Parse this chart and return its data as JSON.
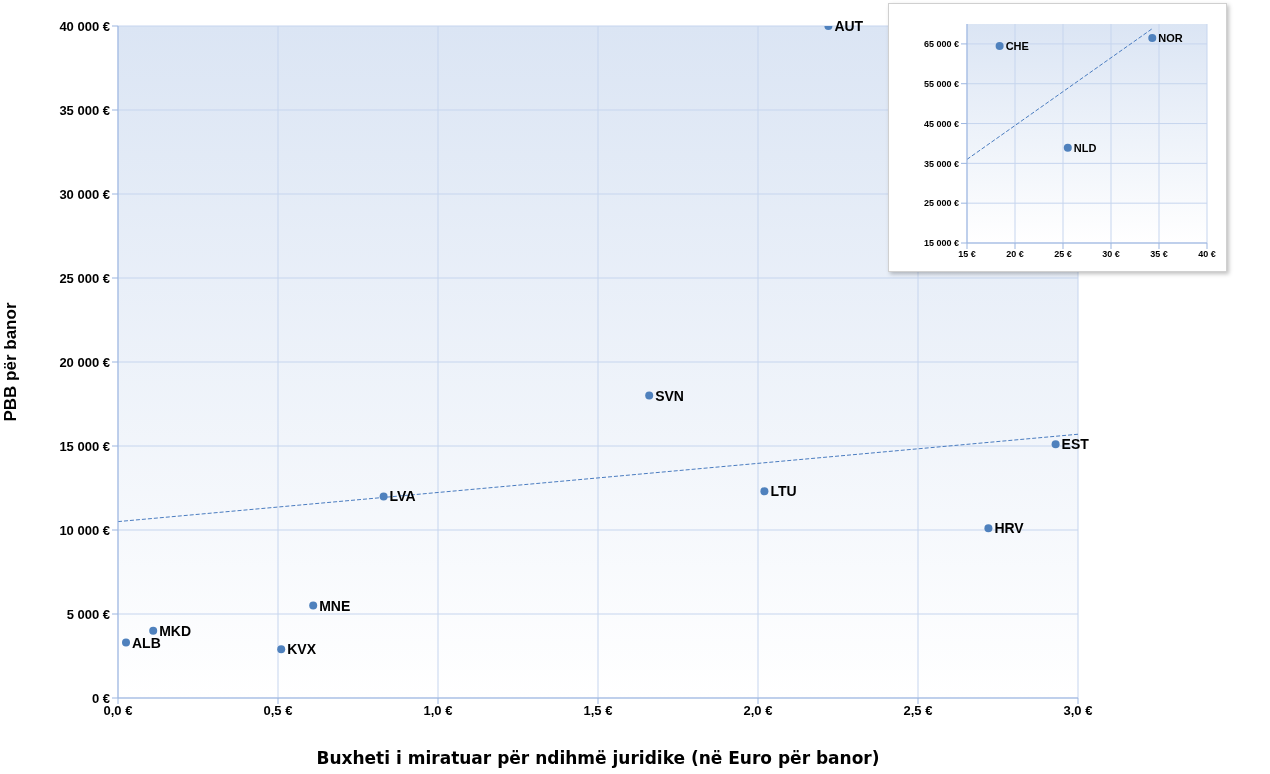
{
  "chart_data": [
    {
      "type": "scatter",
      "xlabel": "Buxheti i miratuar për ndihmë juridike (në Euro për banor)",
      "ylabel": "PBB për banor",
      "xlim": [
        0,
        3
      ],
      "ylim": [
        0,
        40000
      ],
      "xticks": [
        {
          "value": 0,
          "label": "0,0 €"
        },
        {
          "value": 0.5,
          "label": "0,5 €"
        },
        {
          "value": 1,
          "label": "1,0 €"
        },
        {
          "value": 1.5,
          "label": "1,5 €"
        },
        {
          "value": 2,
          "label": "2,0 €"
        },
        {
          "value": 2.5,
          "label": "2,5 €"
        },
        {
          "value": 3,
          "label": "3,0 €"
        }
      ],
      "yticks": [
        {
          "value": 0,
          "label": "0 €"
        },
        {
          "value": 5000,
          "label": "5 000 €"
        },
        {
          "value": 10000,
          "label": "10 000 €"
        },
        {
          "value": 15000,
          "label": "15 000 €"
        },
        {
          "value": 20000,
          "label": "20 000 €"
        },
        {
          "value": 25000,
          "label": "25 000 €"
        },
        {
          "value": 30000,
          "label": "30 000 €"
        },
        {
          "value": 35000,
          "label": "35 000 €"
        },
        {
          "value": 40000,
          "label": "40 000 €"
        }
      ],
      "grid": true,
      "series": [
        {
          "marker": "circle",
          "color": "#4f81bd",
          "x": [
            0.025,
            0.11,
            0.51,
            0.61,
            0.83,
            1.66,
            2.02,
            2.72,
            2.93,
            2.22
          ],
          "values": [
            3300,
            4000,
            2900,
            5500,
            12000,
            18000,
            12300,
            10100,
            15100,
            40000
          ]
        },
        {
          "type": "line",
          "color": "#4a7cc0",
          "line_style": "dashed",
          "x": [
            0,
            3
          ],
          "values": [
            10500,
            15700
          ]
        }
      ],
      "annotations": [
        {
          "text": "ALB",
          "x": 0.025,
          "y": 3300
        },
        {
          "text": "MKD",
          "x": 0.11,
          "y": 4000
        },
        {
          "text": "KVX",
          "x": 0.51,
          "y": 2900
        },
        {
          "text": "MNE",
          "x": 0.61,
          "y": 5500
        },
        {
          "text": "LVA",
          "x": 0.83,
          "y": 12000
        },
        {
          "text": "SVN",
          "x": 1.66,
          "y": 18000
        },
        {
          "text": "LTU",
          "x": 2.02,
          "y": 12300
        },
        {
          "text": "HRV",
          "x": 2.72,
          "y": 10100
        },
        {
          "text": "EST",
          "x": 2.93,
          "y": 15100
        },
        {
          "text": "AUT",
          "x": 2.22,
          "y": 40000
        }
      ]
    },
    {
      "type": "scatter",
      "xlim": [
        15,
        40
      ],
      "ylim": [
        15000,
        70000
      ],
      "xticks": [
        {
          "value": 15,
          "label": "15 €"
        },
        {
          "value": 20,
          "label": "20 €"
        },
        {
          "value": 25,
          "label": "25 €"
        },
        {
          "value": 30,
          "label": "30 €"
        },
        {
          "value": 35,
          "label": "35 €"
        },
        {
          "value": 40,
          "label": "40 €"
        }
      ],
      "yticks": [
        {
          "value": 15000,
          "label": "15 000 €"
        },
        {
          "value": 25000,
          "label": "25 000 €"
        },
        {
          "value": 35000,
          "label": "35 000 €"
        },
        {
          "value": 45000,
          "label": "45 000 €"
        },
        {
          "value": 55000,
          "label": "55 000 €"
        },
        {
          "value": 65000,
          "label": "65 000 €"
        }
      ],
      "grid": true,
      "series": [
        {
          "marker": "circle",
          "color": "#4f81bd",
          "x": [
            18.4,
            25.5,
            34.3
          ],
          "values": [
            64500,
            38900,
            66500
          ]
        },
        {
          "type": "line",
          "color": "#4a7cc0",
          "line_style": "dashed",
          "x": [
            15,
            34.4
          ],
          "values": [
            36000,
            69000
          ]
        }
      ],
      "annotations": [
        {
          "text": "CHE",
          "x": 18.4,
          "y": 64500
        },
        {
          "text": "NLD",
          "x": 25.5,
          "y": 38900
        },
        {
          "text": "NOR",
          "x": 34.3,
          "y": 66500
        }
      ]
    }
  ]
}
